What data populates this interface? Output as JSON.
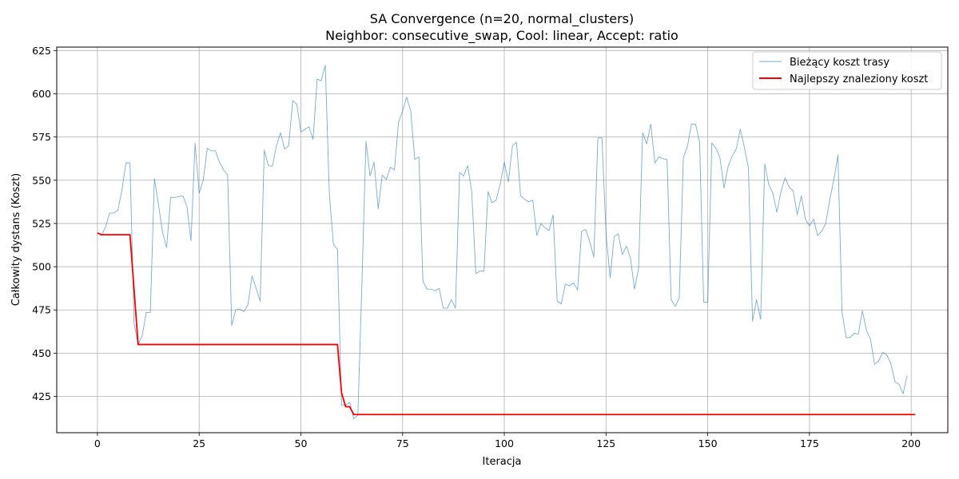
{
  "chart_data": {
    "type": "line",
    "title": "SA Convergence (n=20, normal_clusters)",
    "subtitle": "Neighbor: consecutive_swap, Cool: linear, Accept: ratio",
    "xlabel": "Iteracja",
    "ylabel": "Całkowity dystans (Koszt)",
    "xlim": [
      -10,
      209
    ],
    "ylim": [
      404,
      627
    ],
    "xticks": [
      0,
      25,
      50,
      75,
      100,
      125,
      150,
      175,
      200
    ],
    "yticks": [
      425,
      450,
      475,
      500,
      525,
      550,
      575,
      600,
      625
    ],
    "grid": true,
    "legend_position": "top-right",
    "series": [
      {
        "name": "Bieżący koszt trasy",
        "color": "#1f77b4",
        "values": [
          519.5,
          518,
          523,
          531,
          531,
          532.5,
          544,
          560,
          560,
          467,
          455,
          460,
          473.5,
          473.5,
          551,
          536,
          520,
          511,
          540,
          540,
          540.5,
          541,
          535,
          515,
          571.5,
          542.5,
          550,
          568.5,
          567,
          567,
          560.5,
          556,
          553,
          466,
          475,
          475.5,
          474,
          478,
          494.5,
          487.5,
          480,
          567.5,
          558.5,
          558,
          570,
          577.5,
          568,
          570,
          596,
          594,
          578,
          579.5,
          581,
          573.5,
          608.5,
          607.5,
          616.5,
          542,
          513,
          510,
          420,
          420,
          421.5,
          412,
          414,
          490,
          572.5,
          552.5,
          560.5,
          533.5,
          553,
          550.5,
          557.5,
          556,
          583.5,
          590,
          598,
          590,
          562,
          563.5,
          491.5,
          487,
          487,
          486,
          487.5,
          476,
          476,
          481,
          476,
          554.5,
          552.5,
          558.5,
          543,
          496,
          497.5,
          497.5,
          543.5,
          537,
          538.5,
          548,
          560.5,
          549,
          570,
          572,
          541,
          539,
          537.5,
          538.5,
          518,
          525,
          522.5,
          521,
          530,
          480,
          478.5,
          490,
          489,
          490.5,
          486.5,
          520.5,
          521.5,
          514.5,
          505.5,
          574.5,
          574.5,
          519,
          493.5,
          517.5,
          519,
          507,
          512,
          505,
          487,
          499,
          577.5,
          571,
          582.5,
          560,
          563.5,
          562.5,
          562,
          481,
          477,
          482,
          563,
          569.5,
          582.5,
          582.5,
          572,
          479.5,
          479.5,
          571.5,
          568.5,
          563,
          545.5,
          558,
          564,
          568,
          579.5,
          569,
          557,
          468.5,
          481,
          469.5,
          559.5,
          547.5,
          542.5,
          531.5,
          543.5,
          551.5,
          546,
          544,
          530,
          541,
          527.5,
          523.5,
          527.5,
          518,
          520.5,
          525,
          539,
          550.5,
          564.5,
          474,
          459,
          459,
          461.5,
          461,
          474.5,
          463,
          458,
          443.5,
          445.5,
          450.5,
          449,
          444,
          433.5,
          432,
          426.5,
          437
        ]
      },
      {
        "name": "Najlepszy znaleziony koszt",
        "color": "#ff0000",
        "values": [
          519.5,
          518.5,
          518.5,
          518.5,
          518.5,
          518.5,
          518.5,
          518.5,
          518.5,
          487,
          455,
          455,
          455,
          455,
          455,
          455,
          455,
          455,
          455,
          455,
          455,
          455,
          455,
          455,
          455,
          455,
          455,
          455,
          455,
          455,
          455,
          455,
          455,
          455,
          455,
          455,
          455,
          455,
          455,
          455,
          455,
          455,
          455,
          455,
          455,
          455,
          455,
          455,
          455,
          455,
          455,
          455,
          455,
          455,
          455,
          455,
          455,
          455,
          455,
          455,
          427,
          419,
          419,
          414.5,
          414.5,
          414.5,
          414.5,
          414.5,
          414.5,
          414.5,
          414.5,
          414.5,
          414.5,
          414.5,
          414.5,
          414.5,
          414.5,
          414.5,
          414.5,
          414.5,
          414.5,
          414.5,
          414.5,
          414.5,
          414.5,
          414.5,
          414.5,
          414.5,
          414.5,
          414.5,
          414.5,
          414.5,
          414.5,
          414.5,
          414.5,
          414.5,
          414.5,
          414.5,
          414.5,
          414.5,
          414.5,
          414.5,
          414.5,
          414.5,
          414.5,
          414.5,
          414.5,
          414.5,
          414.5,
          414.5,
          414.5,
          414.5,
          414.5,
          414.5,
          414.5,
          414.5,
          414.5,
          414.5,
          414.5,
          414.5,
          414.5,
          414.5,
          414.5,
          414.5,
          414.5,
          414.5,
          414.5,
          414.5,
          414.5,
          414.5,
          414.5,
          414.5,
          414.5,
          414.5,
          414.5,
          414.5,
          414.5,
          414.5,
          414.5,
          414.5,
          414.5,
          414.5,
          414.5,
          414.5,
          414.5,
          414.5,
          414.5,
          414.5,
          414.5,
          414.5,
          414.5,
          414.5,
          414.5,
          414.5,
          414.5,
          414.5,
          414.5,
          414.5,
          414.5,
          414.5,
          414.5,
          414.5,
          414.5,
          414.5,
          414.5,
          414.5,
          414.5,
          414.5,
          414.5,
          414.5,
          414.5,
          414.5,
          414.5,
          414.5,
          414.5,
          414.5,
          414.5,
          414.5,
          414.5,
          414.5,
          414.5,
          414.5,
          414.5,
          414.5,
          414.5,
          414.5,
          414.5,
          414.5,
          414.5,
          414.5,
          414.5,
          414.5,
          414.5,
          414.5,
          414.5,
          414.5,
          414.5,
          414.5,
          414.5,
          414.5,
          414.5,
          414.5
        ]
      }
    ]
  }
}
